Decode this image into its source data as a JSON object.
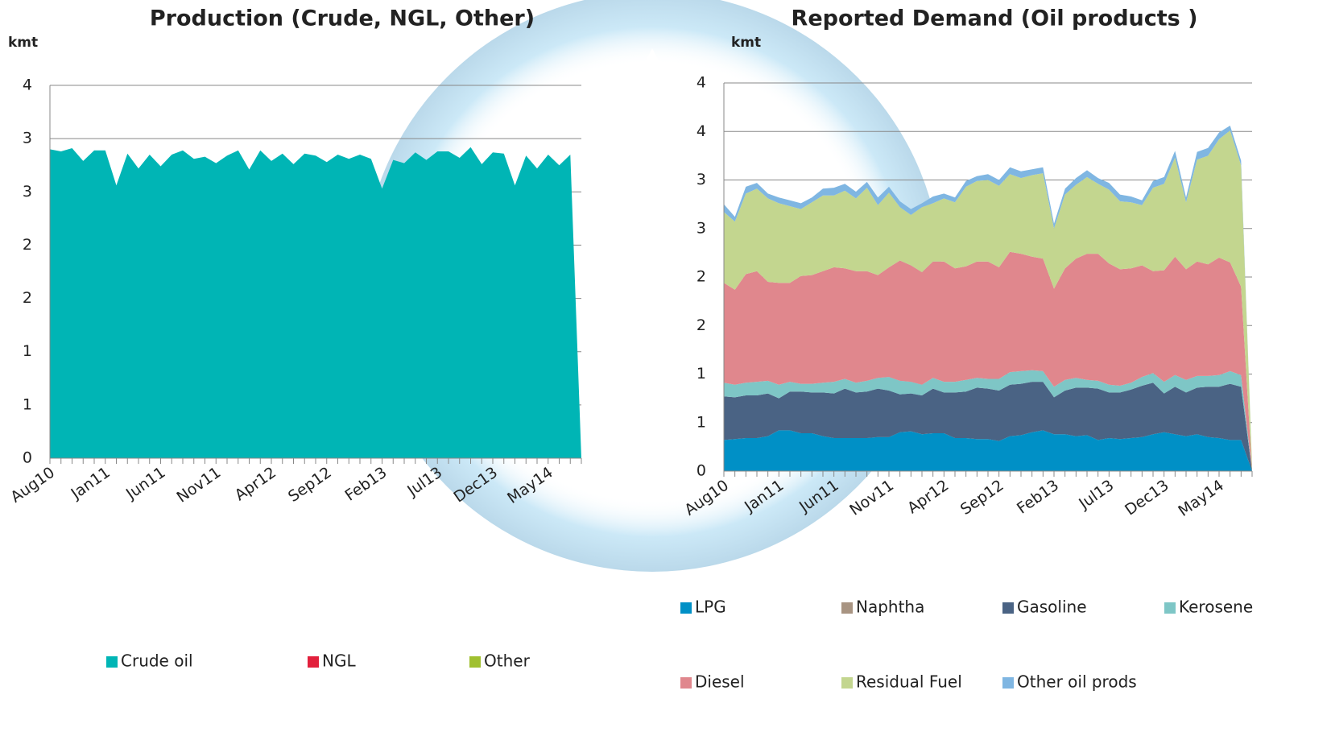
{
  "chart_data": [
    {
      "type": "area",
      "title": "Production (Crude, NGL, Other)",
      "y_label": "kmt",
      "stacked": true,
      "grid": true,
      "legend": "bottom",
      "categories": [
        "Aug10",
        null,
        null,
        null,
        null,
        "Jan11",
        null,
        null,
        null,
        null,
        "Jun11",
        null,
        null,
        null,
        null,
        "Nov11",
        null,
        null,
        null,
        null,
        "Apr12",
        null,
        null,
        null,
        null,
        "Sep12",
        null,
        null,
        null,
        null,
        "Feb13",
        null,
        null,
        null,
        null,
        "Jul13",
        null,
        null,
        null,
        null,
        "Dec13",
        null,
        null,
        null,
        null,
        "May14",
        null,
        null,
        null
      ],
      "ylim": [
        0,
        3.5
      ],
      "yticks": [
        0,
        {
          "value": 0.5,
          "label": "1"
        },
        1,
        {
          "value": 1.5,
          "label": "2"
        },
        2,
        {
          "value": 2.5,
          "label": "3"
        },
        3,
        {
          "value": 3.5,
          "label": "4"
        }
      ],
      "series": [
        {
          "name": "Crude oil",
          "color": "#00b5b5",
          "values": [
            2.9,
            2.88,
            2.91,
            2.79,
            2.89,
            2.89,
            2.56,
            2.86,
            2.72,
            2.85,
            2.74,
            2.85,
            2.89,
            2.81,
            2.83,
            2.77,
            2.84,
            2.89,
            2.71,
            2.89,
            2.79,
            2.86,
            2.76,
            2.86,
            2.84,
            2.78,
            2.85,
            2.81,
            2.85,
            2.81,
            2.53,
            2.8,
            2.77,
            2.87,
            2.8,
            2.88,
            2.88,
            2.82,
            2.92,
            2.76,
            2.87,
            2.86,
            2.56,
            2.84,
            2.72,
            2.85,
            2.75,
            2.85,
            0
          ]
        },
        {
          "name": "NGL",
          "color": "#e2203c",
          "values": [
            0,
            0,
            0,
            0,
            0,
            0,
            0,
            0,
            0,
            0,
            0,
            0,
            0,
            0,
            0,
            0,
            0,
            0,
            0,
            0,
            0,
            0,
            0,
            0,
            0,
            0,
            0,
            0,
            0,
            0,
            0,
            0,
            0,
            0,
            0,
            0,
            0,
            0,
            0,
            0,
            0,
            0,
            0,
            0,
            0,
            0,
            0,
            0,
            0
          ]
        },
        {
          "name": "Other",
          "color": "#a0c030",
          "values": [
            0,
            0,
            0,
            0,
            0,
            0,
            0,
            0,
            0,
            0,
            0,
            0,
            0,
            0,
            0,
            0,
            0,
            0,
            0,
            0,
            0,
            0,
            0,
            0,
            0,
            0,
            0,
            0,
            0,
            0,
            0,
            0,
            0,
            0,
            0,
            0,
            0,
            0,
            0,
            0,
            0,
            0,
            0,
            0,
            0,
            0,
            0,
            0,
            0
          ]
        }
      ]
    },
    {
      "type": "area",
      "title": "Reported Demand (Oil products )",
      "y_label": "kmt",
      "stacked": true,
      "grid": true,
      "legend": "bottom",
      "categories": [
        "Aug10",
        null,
        null,
        null,
        null,
        "Jan11",
        null,
        null,
        null,
        null,
        "Jun11",
        null,
        null,
        null,
        null,
        "Nov11",
        null,
        null,
        null,
        null,
        "Apr12",
        null,
        null,
        null,
        null,
        "Sep12",
        null,
        null,
        null,
        null,
        "Feb13",
        null,
        null,
        null,
        null,
        "Jul13",
        null,
        null,
        null,
        null,
        "Dec13",
        null,
        null,
        null,
        null,
        "May14",
        null,
        null,
        null
      ],
      "ylim": [
        0,
        4
      ],
      "yticks": [
        0,
        {
          "value": 0.5,
          "label": "1"
        },
        1,
        {
          "value": 1.5,
          "label": "2"
        },
        2,
        {
          "value": 2.5,
          "label": "3"
        },
        3,
        {
          "value": 3.5,
          "label": "4"
        },
        4
      ],
      "series": [
        {
          "name": "LPG",
          "color": "#0090c6",
          "values": [
            0.32,
            0.33,
            0.34,
            0.34,
            0.36,
            0.42,
            0.42,
            0.39,
            0.39,
            0.36,
            0.34,
            0.34,
            0.34,
            0.34,
            0.35,
            0.35,
            0.4,
            0.41,
            0.38,
            0.39,
            0.39,
            0.34,
            0.34,
            0.33,
            0.33,
            0.31,
            0.36,
            0.37,
            0.4,
            0.42,
            0.38,
            0.38,
            0.36,
            0.37,
            0.32,
            0.34,
            0.33,
            0.34,
            0.35,
            0.38,
            0.4,
            0.38,
            0.36,
            0.38,
            0.35,
            0.34,
            0.32,
            0.32,
            0
          ]
        },
        {
          "name": "Naphtha",
          "color": "#a89482",
          "values": [
            0,
            0,
            0,
            0,
            0,
            0,
            0,
            0,
            0,
            0,
            0,
            0,
            0,
            0,
            0,
            0,
            0,
            0,
            0,
            0,
            0,
            0,
            0,
            0,
            0,
            0,
            0,
            0,
            0,
            0,
            0,
            0,
            0,
            0,
            0,
            0,
            0,
            0,
            0,
            0,
            0,
            0,
            0,
            0,
            0,
            0,
            0,
            0,
            0
          ]
        },
        {
          "name": "Gasoline",
          "color": "#4a6384",
          "values": [
            0.45,
            0.43,
            0.44,
            0.44,
            0.44,
            0.33,
            0.4,
            0.43,
            0.42,
            0.45,
            0.46,
            0.51,
            0.47,
            0.48,
            0.5,
            0.48,
            0.39,
            0.39,
            0.4,
            0.46,
            0.42,
            0.47,
            0.48,
            0.53,
            0.52,
            0.52,
            0.53,
            0.53,
            0.52,
            0.5,
            0.38,
            0.45,
            0.5,
            0.49,
            0.53,
            0.47,
            0.48,
            0.5,
            0.53,
            0.53,
            0.4,
            0.49,
            0.45,
            0.48,
            0.52,
            0.53,
            0.58,
            0.55,
            0
          ]
        },
        {
          "name": "Kerosene",
          "color": "#7ec6c6",
          "values": [
            0.14,
            0.13,
            0.13,
            0.14,
            0.13,
            0.14,
            0.1,
            0.08,
            0.09,
            0.1,
            0.12,
            0.1,
            0.1,
            0.11,
            0.11,
            0.14,
            0.14,
            0.12,
            0.11,
            0.11,
            0.11,
            0.11,
            0.12,
            0.1,
            0.1,
            0.12,
            0.13,
            0.13,
            0.12,
            0.11,
            0.11,
            0.11,
            0.1,
            0.08,
            0.08,
            0.08,
            0.07,
            0.07,
            0.09,
            0.1,
            0.12,
            0.12,
            0.13,
            0.12,
            0.11,
            0.12,
            0.13,
            0.12,
            0
          ]
        },
        {
          "name": "Diesel",
          "color": "#e0878d",
          "values": [
            1.03,
            0.98,
            1.12,
            1.14,
            1.02,
            1.05,
            1.02,
            1.11,
            1.12,
            1.15,
            1.18,
            1.14,
            1.15,
            1.13,
            1.06,
            1.13,
            1.24,
            1.2,
            1.16,
            1.2,
            1.24,
            1.17,
            1.17,
            1.2,
            1.21,
            1.15,
            1.24,
            1.21,
            1.17,
            1.16,
            1.01,
            1.15,
            1.23,
            1.3,
            1.31,
            1.25,
            1.2,
            1.18,
            1.15,
            1.05,
            1.15,
            1.22,
            1.14,
            1.18,
            1.15,
            1.21,
            1.12,
            0.91,
            0
          ]
        },
        {
          "name": "Residual Fuel",
          "color": "#c3d68f",
          "values": [
            0.73,
            0.7,
            0.83,
            0.85,
            0.86,
            0.82,
            0.79,
            0.69,
            0.75,
            0.78,
            0.74,
            0.8,
            0.75,
            0.86,
            0.72,
            0.77,
            0.55,
            0.52,
            0.67,
            0.6,
            0.65,
            0.68,
            0.82,
            0.83,
            0.84,
            0.84,
            0.8,
            0.78,
            0.84,
            0.88,
            0.62,
            0.76,
            0.76,
            0.79,
            0.72,
            0.76,
            0.7,
            0.68,
            0.62,
            0.86,
            0.89,
            1.02,
            0.69,
            1.05,
            1.12,
            1.22,
            1.36,
            1.25,
            0.05
          ]
        },
        {
          "name": "Other oil prods",
          "color": "#7fb6e2",
          "values": [
            0.08,
            0.05,
            0.07,
            0.06,
            0.05,
            0.06,
            0.06,
            0.06,
            0.05,
            0.07,
            0.08,
            0.07,
            0.07,
            0.06,
            0.08,
            0.06,
            0.06,
            0.06,
            0.04,
            0.07,
            0.05,
            0.05,
            0.06,
            0.05,
            0.06,
            0.06,
            0.07,
            0.07,
            0.06,
            0.06,
            0.05,
            0.06,
            0.07,
            0.07,
            0.06,
            0.07,
            0.07,
            0.06,
            0.05,
            0.07,
            0.07,
            0.07,
            0.05,
            0.08,
            0.08,
            0.07,
            0.05,
            0.05,
            0
          ]
        }
      ]
    }
  ]
}
